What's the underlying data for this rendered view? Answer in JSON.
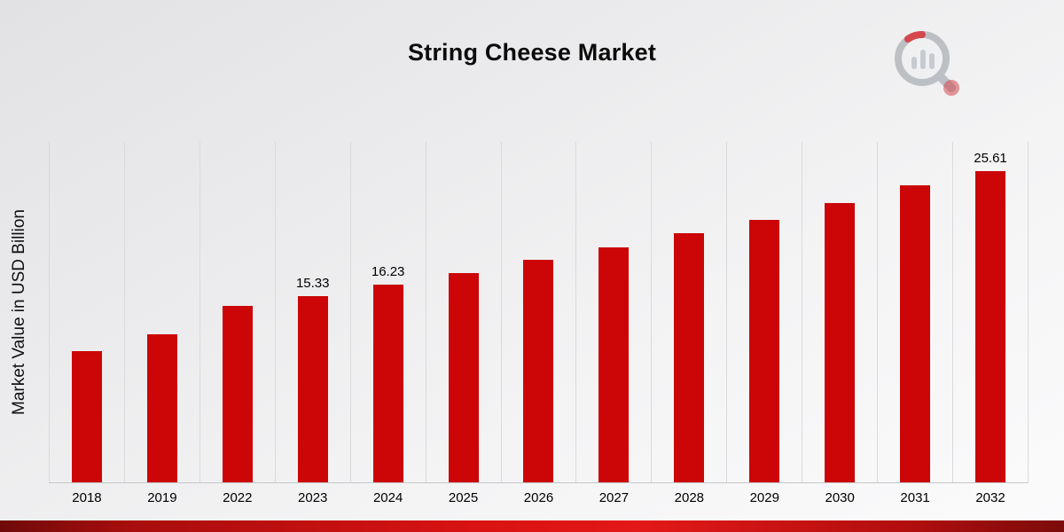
{
  "chart_data": {
    "type": "bar",
    "title": "String Cheese Market",
    "ylabel": "Market Value in USD Billion",
    "xlabel": "",
    "ylim": [
      0,
      28
    ],
    "grid": "vertical",
    "legend": "none",
    "bar_color": "#CC0606",
    "categories": [
      "2018",
      "2019",
      "2022",
      "2023",
      "2024",
      "2025",
      "2026",
      "2027",
      "2028",
      "2029",
      "2030",
      "2031",
      "2032"
    ],
    "values": [
      10.8,
      12.2,
      14.5,
      15.33,
      16.23,
      17.2,
      18.3,
      19.3,
      20.5,
      21.6,
      23.0,
      24.4,
      25.61
    ],
    "value_labels": {
      "2023": "15.33",
      "2024": "16.23",
      "2032": "25.61"
    }
  }
}
